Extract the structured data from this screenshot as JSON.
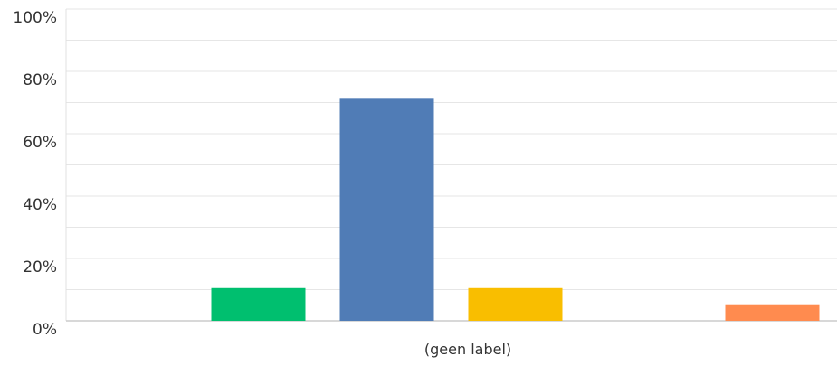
{
  "chart_data": {
    "type": "bar",
    "title": "",
    "xlabel": "(geen label)",
    "ylabel": "",
    "ylim": [
      0,
      100
    ],
    "y_ticks": [
      0,
      20,
      40,
      60,
      80,
      100
    ],
    "y_tick_labels": [
      "0%",
      "20%",
      "40%",
      "60%",
      "80%",
      "100%"
    ],
    "grid": true,
    "minor_grid": true,
    "legend": "none",
    "categories": [
      "",
      "",
      "",
      "",
      "",
      ""
    ],
    "values": [
      0,
      10.5,
      71.5,
      10.5,
      0,
      5.3
    ],
    "colors": [
      "#00BF6F",
      "#00BF6F",
      "#507CB6",
      "#F9BE00",
      "#6BC8CD",
      "#FF8B4F"
    ]
  },
  "colors": {
    "grid": "#e6e6e6",
    "axis": "#cccccc",
    "text": "#333333"
  }
}
